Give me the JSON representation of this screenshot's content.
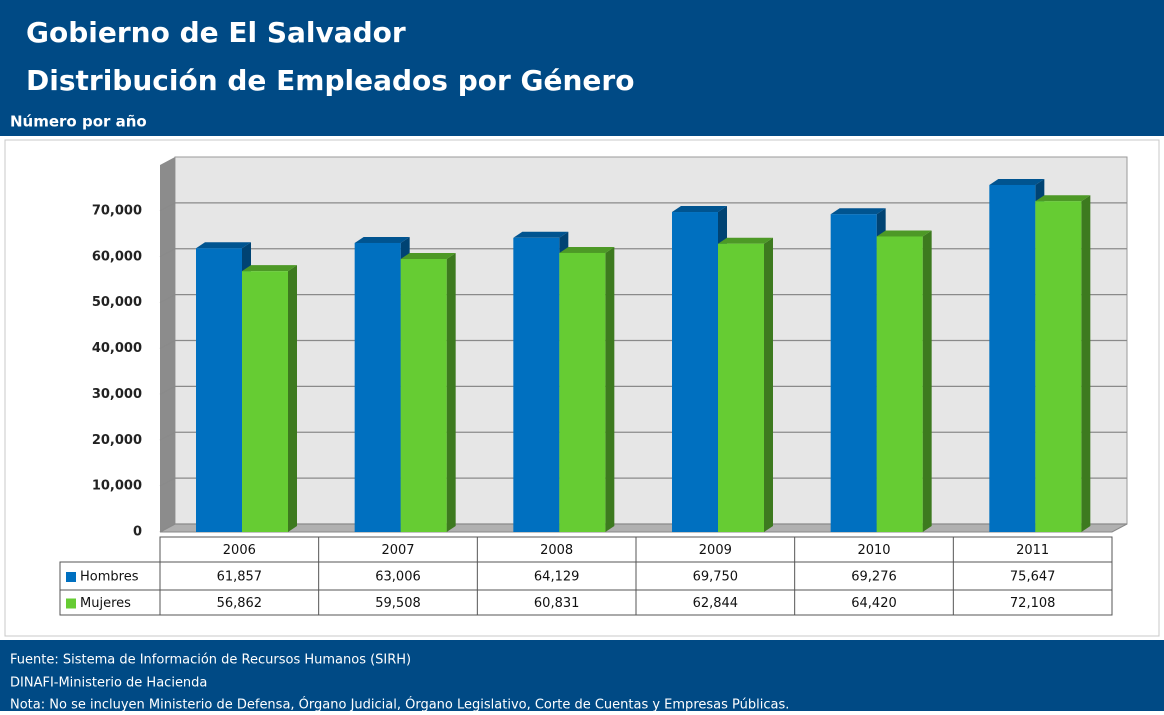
{
  "header": {
    "title": "Gobierno de El Salvador",
    "subtitle": "Distribución de Empleados por Género",
    "caption": "Número por año"
  },
  "chart_data": {
    "type": "bar3d",
    "categories": [
      "2006",
      "2007",
      "2008",
      "2009",
      "2010",
      "2011"
    ],
    "series": [
      {
        "name": "Hombres",
        "color": "#0070c0",
        "values": [
          61857,
          63006,
          64129,
          69750,
          69276,
          75647
        ],
        "value_labels": [
          "61,857",
          "63,006",
          "64,129",
          "69,750",
          "69,276",
          "75,647"
        ]
      },
      {
        "name": "Mujeres",
        "color": "#66cc33",
        "values": [
          56862,
          59508,
          60831,
          62844,
          64420,
          72108
        ],
        "value_labels": [
          "56,862",
          "59,508",
          "60,831",
          "62,844",
          "64,420",
          "72,108"
        ]
      }
    ],
    "ylim": [
      0,
      80000
    ],
    "yticks": [
      0,
      {
        "value": 10000,
        "label": "10,000"
      },
      {
        "value": 20000,
        "label": "20,000"
      },
      {
        "value": 30000,
        "label": "30,000"
      },
      {
        "value": 40000,
        "label": "40,000"
      },
      {
        "value": 50000,
        "label": "50,000"
      },
      {
        "value": 60000,
        "label": "60,000"
      },
      {
        "value": 70000,
        "label": "70,000"
      }
    ],
    "grid": true
  },
  "footer": {
    "lines": [
      "Fuente: Sistema de Información de Recursos Humanos (SIRH)",
      "DINAFI-Ministerio de Hacienda",
      "Nota: No se incluyen Ministerio de Defensa, Órgano Judicial, Órgano Legislativo, Corte de Cuentas y Empresas Públicas."
    ]
  }
}
